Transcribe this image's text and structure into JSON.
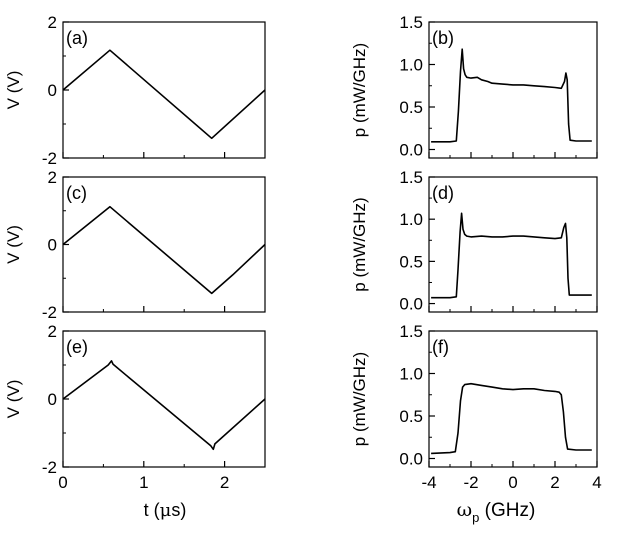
{
  "chart_data": [
    {
      "panel": "(a)",
      "type": "line",
      "ylabel": "V (V)",
      "xlabel": "",
      "xlim": [
        0,
        2.5
      ],
      "ylim": [
        -2,
        2
      ],
      "yticks": [
        -2,
        0,
        2
      ],
      "xticks": [
        0,
        1,
        2
      ],
      "series": [
        {
          "name": "V",
          "x": [
            0,
            0.58,
            1.84,
            2.5
          ],
          "y": [
            0,
            1.17,
            -1.42,
            0
          ]
        }
      ]
    },
    {
      "panel": "(b)",
      "type": "line",
      "ylabel": "p (mW/GHz)",
      "xlabel": "",
      "xlim": [
        -4,
        4
      ],
      "ylim": [
        -0.1,
        1.5
      ],
      "yticks": [
        0.0,
        0.5,
        1.0,
        1.5
      ],
      "xticks": [
        -4,
        -2,
        0,
        2,
        4
      ],
      "series": [
        {
          "name": "p",
          "x": [
            -3.9,
            -3.0,
            -2.7,
            -2.6,
            -2.5,
            -2.42,
            -2.35,
            -2.28,
            -2.2,
            -2.0,
            -1.7,
            -1.5,
            -1.2,
            -1.0,
            -0.5,
            0,
            0.5,
            1.0,
            1.5,
            2.0,
            2.3,
            2.45,
            2.52,
            2.58,
            2.65,
            2.72,
            3.0,
            3.4,
            3.75
          ],
          "y": [
            0.09,
            0.09,
            0.1,
            0.45,
            0.92,
            1.18,
            0.95,
            0.88,
            0.85,
            0.84,
            0.85,
            0.82,
            0.8,
            0.78,
            0.77,
            0.76,
            0.76,
            0.75,
            0.74,
            0.73,
            0.72,
            0.8,
            0.9,
            0.82,
            0.3,
            0.11,
            0.1,
            0.1,
            0.1
          ]
        }
      ]
    },
    {
      "panel": "(c)",
      "type": "line",
      "ylabel": "V (V)",
      "xlabel": "",
      "xlim": [
        0,
        2.5
      ],
      "ylim": [
        -2,
        2
      ],
      "yticks": [
        -2,
        0,
        2
      ],
      "xticks": [
        0,
        1,
        2
      ],
      "series": [
        {
          "name": "V",
          "x": [
            0,
            0.58,
            1.84,
            2.1,
            2.5
          ],
          "y": [
            0,
            1.12,
            -1.45,
            -0.9,
            0
          ]
        }
      ]
    },
    {
      "panel": "(d)",
      "type": "line",
      "ylabel": "p (mW/GHz)",
      "xlabel": "",
      "xlim": [
        -4,
        4
      ],
      "ylim": [
        -0.1,
        1.5
      ],
      "yticks": [
        0.0,
        0.5,
        1.0,
        1.5
      ],
      "xticks": [
        -4,
        -2,
        0,
        2,
        4
      ],
      "series": [
        {
          "name": "p",
          "x": [
            -3.9,
            -3.0,
            -2.7,
            -2.62,
            -2.52,
            -2.45,
            -2.38,
            -2.3,
            -2.2,
            -2.0,
            -1.5,
            -1.0,
            -0.5,
            0,
            0.5,
            1.0,
            1.5,
            2.0,
            2.3,
            2.42,
            2.5,
            2.56,
            2.62,
            2.68,
            3.0,
            3.4,
            3.75
          ],
          "y": [
            0.07,
            0.07,
            0.08,
            0.4,
            0.85,
            1.07,
            0.88,
            0.82,
            0.8,
            0.79,
            0.8,
            0.79,
            0.79,
            0.8,
            0.8,
            0.79,
            0.78,
            0.77,
            0.78,
            0.9,
            0.95,
            0.78,
            0.3,
            0.1,
            0.1,
            0.1,
            0.1
          ]
        }
      ]
    },
    {
      "panel": "(e)",
      "type": "line",
      "ylabel": "V (V)",
      "xlabel": "t (μs)",
      "xlim": [
        0,
        2.5
      ],
      "ylim": [
        -2,
        2
      ],
      "yticks": [
        -2,
        0,
        2
      ],
      "xticks": [
        0,
        1,
        2
      ],
      "series": [
        {
          "name": "V",
          "x": [
            0,
            0.56,
            0.6,
            0.62,
            1.83,
            1.86,
            1.88,
            2.5
          ],
          "y": [
            0,
            1.0,
            1.12,
            1.02,
            -1.38,
            -1.48,
            -1.32,
            0
          ]
        }
      ]
    },
    {
      "panel": "(f)",
      "type": "line",
      "ylabel": "p (mW/GHz)",
      "xlabel": "ωp (GHz)",
      "xlim": [
        -4,
        4
      ],
      "ylim": [
        -0.1,
        1.5
      ],
      "yticks": [
        0.0,
        0.5,
        1.0,
        1.5
      ],
      "xticks": [
        -4,
        -2,
        0,
        2,
        4
      ],
      "series": [
        {
          "name": "p",
          "x": [
            -3.9,
            -3.0,
            -2.75,
            -2.62,
            -2.5,
            -2.4,
            -2.3,
            -2.0,
            -1.5,
            -1.0,
            -0.5,
            0,
            0.5,
            1.0,
            1.5,
            2.0,
            2.2,
            2.3,
            2.4,
            2.5,
            2.6,
            3.0,
            3.4,
            3.75
          ],
          "y": [
            0.06,
            0.07,
            0.08,
            0.3,
            0.68,
            0.84,
            0.87,
            0.88,
            0.86,
            0.84,
            0.82,
            0.81,
            0.82,
            0.82,
            0.8,
            0.79,
            0.78,
            0.75,
            0.55,
            0.25,
            0.11,
            0.1,
            0.1,
            0.1
          ]
        }
      ]
    }
  ],
  "axis_text": {
    "omega_symbol": "ω",
    "omega_subscript": "p",
    "omega_unit": " (GHz)",
    "t_prefix": "t (",
    "t_symbol": "μ",
    "t_suffix": "s)"
  }
}
